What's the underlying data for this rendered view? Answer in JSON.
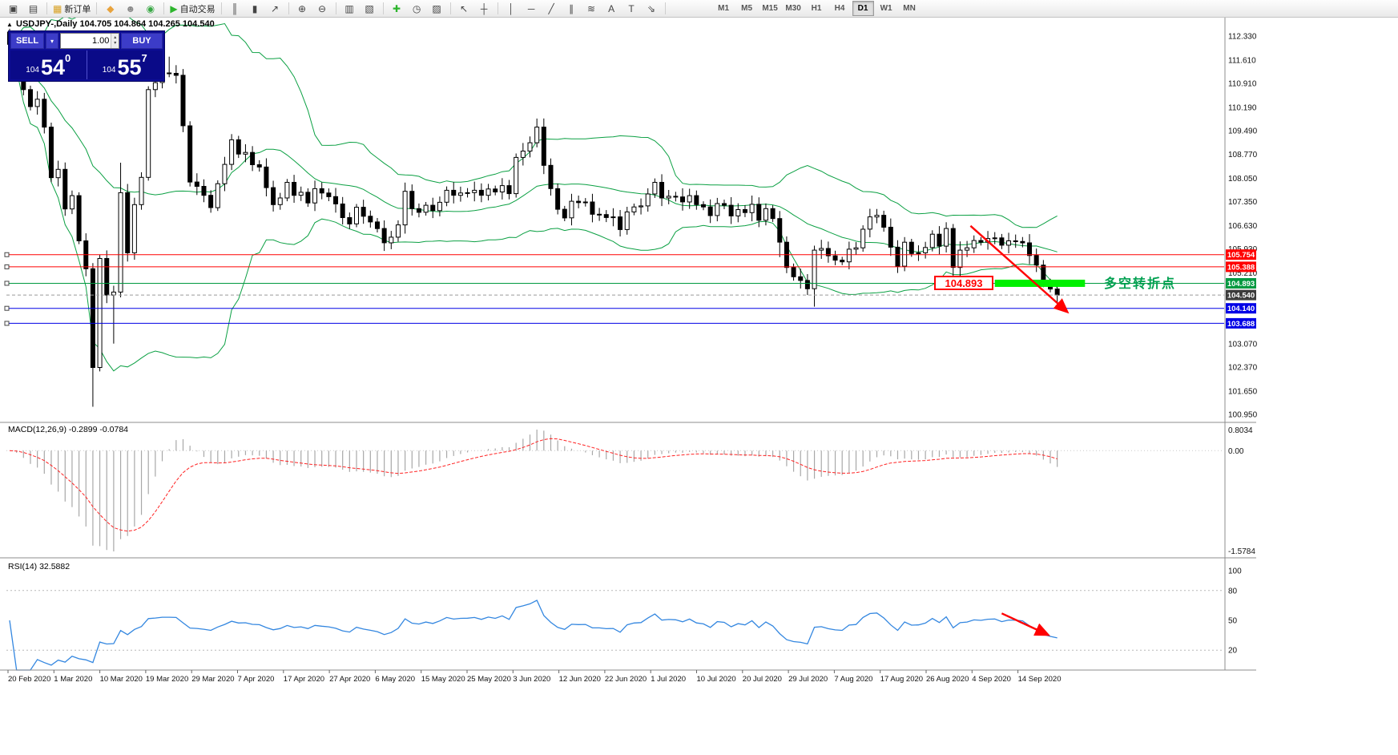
{
  "colors": {
    "bollinger": "#0ba043",
    "candle_up": "#ffffff",
    "candle_down": "#000000",
    "candle_outline": "#000000",
    "macd_hist": "#a8a8a8",
    "macd_signal": "#ff2222",
    "rsi_line": "#3487e0",
    "hline_red": "#ff0000",
    "hline_blue": "#0000e6",
    "hline_green": "#009940",
    "bid_line": "#9a9a9a",
    "band": "#00f000",
    "annotation_red": "#ff0000",
    "note_green": "#00a050",
    "panel_navy": "#0d0d96",
    "button_blue": "#3c3cc8",
    "axis_text": "#111111",
    "separator": "#8c8c8c"
  },
  "toolbar": {
    "groups": [
      {
        "items": [
          {
            "name": "chart-window-icon",
            "glyph": "▣"
          },
          {
            "name": "profiles-window-icon",
            "glyph": "▤"
          }
        ]
      },
      {
        "items": [
          {
            "name": "new-order-button",
            "icon": "new-order-icon",
            "glyph": "▦",
            "glyph_color": "#d8a020",
            "label": "新订单"
          }
        ]
      },
      {
        "items": [
          {
            "name": "metaeditor-icon",
            "glyph": "◆",
            "glyph_color": "#e8a33d"
          },
          {
            "name": "market-watch-icon",
            "glyph": "☻",
            "glyph_color": "#8a8a8a"
          },
          {
            "name": "navigator-icon",
            "glyph": "◉",
            "glyph_color": "#39a845"
          }
        ]
      },
      {
        "items": [
          {
            "name": "autotrading-button",
            "icon": "autotrading-icon",
            "glyph": "▶",
            "glyph_color": "#2db52d",
            "label": "自动交易"
          }
        ]
      },
      {
        "items": [
          {
            "name": "bar-chart-icon",
            "glyph": "║"
          },
          {
            "name": "candlestick-chart-icon",
            "glyph": "▮"
          },
          {
            "name": "line-chart-icon",
            "glyph": "↗"
          }
        ]
      },
      {
        "items": [
          {
            "name": "zoom-in-icon",
            "glyph": "⊕"
          },
          {
            "name": "zoom-out-icon",
            "glyph": "⊖"
          }
        ]
      },
      {
        "items": [
          {
            "name": "tile-windows-icon",
            "glyph": "▥"
          },
          {
            "name": "arrange-windows-icon",
            "glyph": "▧"
          }
        ]
      },
      {
        "items": [
          {
            "name": "add-indicator-icon",
            "glyph": "✚",
            "glyph_color": "#2db52d"
          },
          {
            "name": "period-clock-icon",
            "glyph": "◷"
          },
          {
            "name": "templates-icon",
            "glyph": "▨"
          }
        ]
      },
      {
        "items": [
          {
            "name": "cursor-icon",
            "glyph": "↖"
          },
          {
            "name": "crosshair-icon",
            "glyph": "┼"
          }
        ]
      },
      {
        "items": [
          {
            "name": "vertical-line-icon",
            "glyph": "│"
          },
          {
            "name": "horizontal-line-icon",
            "glyph": "─"
          },
          {
            "name": "trendline-icon",
            "glyph": "╱"
          },
          {
            "name": "channel-icon",
            "glyph": "∥"
          },
          {
            "name": "fibonacci-icon",
            "glyph": "≋"
          },
          {
            "name": "text-tool-icon",
            "glyph": "A"
          },
          {
            "name": "label-tool-icon",
            "glyph": "T"
          },
          {
            "name": "arrows-tool-icon",
            "glyph": "⇘"
          }
        ]
      }
    ],
    "timeframes": [
      {
        "label": "M1"
      },
      {
        "label": "M5"
      },
      {
        "label": "M15"
      },
      {
        "label": "M30"
      },
      {
        "label": "H1"
      },
      {
        "label": "H4"
      },
      {
        "label": "D1",
        "active": true
      },
      {
        "label": "W1"
      },
      {
        "label": "MN"
      }
    ],
    "right": {
      "compose_glyph": "✎",
      "overflow_glyph": "»"
    }
  },
  "chart_header": {
    "title": "USDJPY-,Daily 104.705 104.864 104.265 104.540"
  },
  "trade_panel": {
    "collapse_glyph": "▲",
    "sell_label": "SELL",
    "buy_label": "BUY",
    "volume": "1.00",
    "dropdown_glyph": "▾",
    "spin_up": "▴",
    "spin_down": "▾",
    "bid": {
      "prefix": "104",
      "big": "54",
      "sup": "0"
    },
    "ask": {
      "prefix": "104",
      "big": "55",
      "sup": "7"
    }
  },
  "chart_data": [
    {
      "type": "candlestick",
      "title": "USDJPY-,Daily",
      "ohlc_display": {
        "open": "104.705",
        "high": "104.864",
        "low": "104.265",
        "close": "104.540"
      },
      "start_date": "20 Feb 2020",
      "end_date": "18 Sep 2020",
      "ylim": [
        100.95,
        112.33
      ],
      "first_open": 112.45,
      "closes": [
        112.08,
        111.58,
        110.72,
        110.21,
        110.43,
        109.59,
        108.07,
        108.32,
        107.13,
        107.53,
        106.17,
        105.33,
        102.36,
        105.64,
        104.54,
        104.63,
        107.62,
        105.81,
        107.26,
        108.08,
        110.72,
        110.93,
        111.22,
        111.21,
        111.15,
        109.63,
        107.94,
        107.81,
        107.54,
        107.17,
        107.89,
        108.47,
        109.21,
        108.78,
        108.83,
        108.46,
        108.39,
        107.77,
        107.26,
        107.46,
        107.93,
        107.54,
        107.63,
        107.31,
        107.74,
        107.61,
        107.5,
        107.28,
        106.87,
        106.68,
        107.18,
        106.91,
        106.74,
        106.54,
        106.11,
        106.28,
        106.65,
        107.66,
        107.14,
        107.03,
        107.24,
        107.08,
        107.33,
        107.69,
        107.54,
        107.61,
        107.62,
        107.69,
        107.54,
        107.73,
        107.64,
        107.83,
        107.59,
        108.68,
        108.87,
        109.12,
        109.59,
        108.44,
        107.74,
        107.12,
        106.86,
        107.36,
        107.32,
        107.34,
        106.97,
        106.96,
        106.87,
        106.89,
        106.51,
        107.04,
        107.19,
        107.22,
        107.58,
        107.93,
        107.46,
        107.51,
        107.49,
        107.34,
        107.53,
        107.26,
        107.19,
        106.93,
        107.29,
        107.24,
        106.92,
        107.11,
        107.02,
        107.27,
        106.79,
        107.14,
        106.84,
        106.13,
        105.37,
        105.09,
        104.98,
        104.73,
        105.89,
        105.94,
        105.72,
        105.59,
        105.54,
        105.92,
        105.96,
        106.52,
        106.89,
        106.94,
        106.58,
        105.98,
        105.41,
        106.13,
        105.79,
        105.81,
        105.97,
        106.37,
        106.01,
        106.54,
        105.37,
        105.89,
        105.96,
        106.18,
        106.13,
        106.24,
        106.26,
        106.04,
        106.17,
        106.15,
        106.11,
        105.73,
        105.44,
        104.93,
        104.72,
        104.54
      ],
      "wick_overrides": {
        "12": [
          null,
          101.18
        ],
        "15": [
          null,
          103.08
        ],
        "16": [
          108.52,
          104.47
        ],
        "21": [
          111.51,
          null
        ],
        "23": [
          111.71,
          null
        ],
        "76": [
          109.85,
          null
        ],
        "111": [
          null,
          105.68
        ],
        "116": [
          null,
          104.19
        ],
        "136": [
          null,
          105.1
        ],
        "151": [
          104.864,
          104.265
        ]
      },
      "indicators": [
        {
          "name": "Bollinger Bands",
          "period": 20,
          "deviation": 2
        }
      ],
      "ylabels": [
        "112.330",
        "111.610",
        "110.910",
        "110.190",
        "109.490",
        "108.770",
        "108.050",
        "107.350",
        "106.630",
        "105.930",
        "105.210",
        "103.070",
        "102.370",
        "101.650",
        "100.950"
      ]
    },
    {
      "type": "bar",
      "name": "MACD",
      "label": "MACD(12,26,9) -0.2899 -0.0784",
      "params": [
        12,
        26,
        9
      ],
      "main_value": -0.2899,
      "signal_value": -0.0784,
      "scale_labels": {
        "top": "0.8034",
        "zero": "0.00",
        "bottom": "-1.5784"
      },
      "derived_from": "closes of candlestick panel"
    },
    {
      "type": "line",
      "name": "RSI",
      "label": "RSI(14) 32.5882",
      "period": 14,
      "current": 32.5882,
      "ylim": [
        0,
        100
      ],
      "levels": [
        80,
        20
      ],
      "scale_labels": [
        100,
        80,
        50,
        20
      ],
      "derived_from": "closes of candlestick panel"
    }
  ],
  "hlines": [
    {
      "price": 105.754,
      "color": "#ff0000",
      "style": "solid",
      "marker": true
    },
    {
      "price": 105.388,
      "color": "#ff0000",
      "style": "solid",
      "marker": true
    },
    {
      "price": 104.893,
      "color": "#009940",
      "style": "solid",
      "marker": true
    },
    {
      "price": 104.54,
      "color": "#9a9a9a",
      "style": "dash",
      "marker": false
    },
    {
      "price": 104.14,
      "color": "#0000e6",
      "style": "solid",
      "marker": true
    },
    {
      "price": 103.688,
      "color": "#0000e6",
      "style": "solid",
      "marker": true
    }
  ],
  "price_badges": [
    {
      "label": "105.754",
      "price": 105.754,
      "bg": "#ff0000"
    },
    {
      "label": "105.388",
      "price": 105.388,
      "bg": "#ff0000"
    },
    {
      "label": "104.893",
      "price": 104.893,
      "bg": "#009940"
    },
    {
      "label": "104.540",
      "price": 104.54,
      "bg": "#3c3c3c"
    },
    {
      "label": "104.140",
      "price": 104.14,
      "bg": "#0000e6"
    },
    {
      "label": "103.688",
      "price": 103.688,
      "bg": "#0000e6"
    }
  ],
  "highlight_band": {
    "price": 104.893,
    "start_bar": 142,
    "end_bar": 155
  },
  "arrows": {
    "main": {
      "x1_bar": 138.5,
      "price1": 106.62,
      "x2_bar": 152.3,
      "price2": 104.06
    },
    "rsi": {
      "x1_bar": 143,
      "value1": 57,
      "x2_bar": 149.5,
      "value2": 36
    }
  },
  "annotations": {
    "price_flag": "104.893",
    "note": "多空转折点"
  },
  "date_axis": {
    "labels": [
      "20 Feb 2020",
      "1 Mar 2020",
      "10 Mar 2020",
      "19 Mar 2020",
      "29 Mar 2020",
      "7 Apr 2020",
      "17 Apr 2020",
      "27 Apr 2020",
      "6 May 2020",
      "15 May 2020",
      "25 May 2020",
      "3 Jun 2020",
      "12 Jun 2020",
      "22 Jun 2020",
      "1 Jul 2020",
      "10 Jul 2020",
      "20 Jul 2020",
      "29 Jul 2020",
      "7 Aug 2020",
      "17 Aug 2020",
      "26 Aug 2020",
      "4 Sep 2020",
      "14 Sep 2020"
    ]
  }
}
